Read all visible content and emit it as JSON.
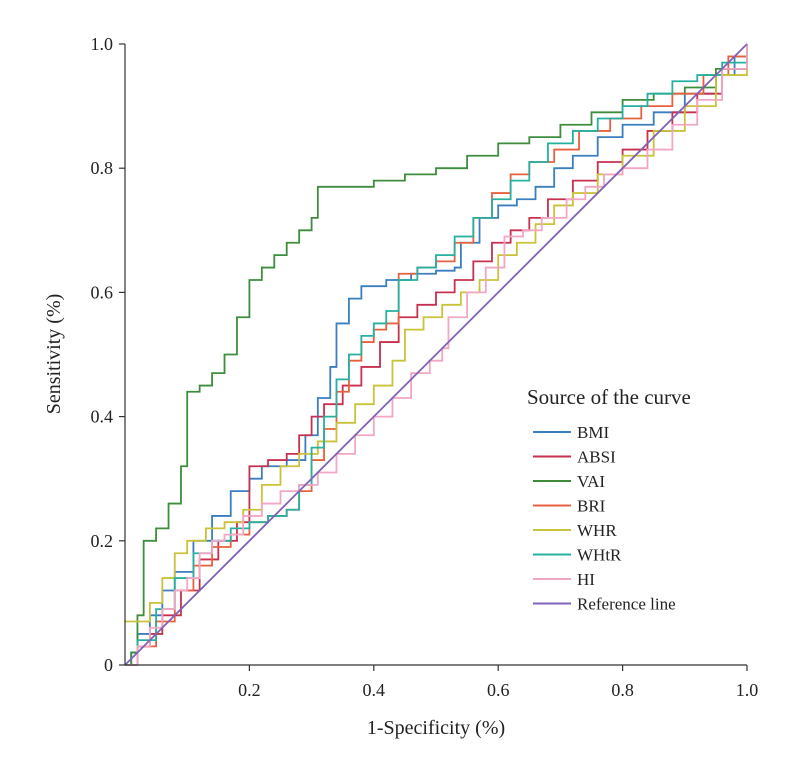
{
  "chart_data": {
    "type": "line",
    "title": "",
    "xlabel": "1-Specificity (%)",
    "ylabel": "Sensitivity (%)",
    "xlim": [
      0,
      1
    ],
    "ylim": [
      0,
      1
    ],
    "x_ticks": [
      0.2,
      0.4,
      0.6,
      0.8,
      1.0
    ],
    "x_tick_labels": [
      "0.2",
      "0.4",
      "0.6",
      "0.8",
      "1.0"
    ],
    "y_ticks": [
      0,
      0.2,
      0.4,
      0.6,
      0.8,
      1.0
    ],
    "y_tick_labels": [
      "0",
      "0.2",
      "0.4",
      "0.6",
      "0.8",
      "1.0"
    ],
    "grid": false,
    "legend": {
      "title": "Source of the curve",
      "placement": "center-right"
    },
    "series": [
      {
        "name": "BMI",
        "color": "#3a7ebf",
        "points": [
          [
            0,
            0
          ],
          [
            0.01,
            0.02
          ],
          [
            0.02,
            0.05
          ],
          [
            0.04,
            0.08
          ],
          [
            0.06,
            0.12
          ],
          [
            0.08,
            0.15
          ],
          [
            0.11,
            0.2
          ],
          [
            0.14,
            0.24
          ],
          [
            0.17,
            0.28
          ],
          [
            0.2,
            0.3
          ],
          [
            0.22,
            0.32
          ],
          [
            0.26,
            0.33
          ],
          [
            0.29,
            0.37
          ],
          [
            0.31,
            0.43
          ],
          [
            0.33,
            0.48
          ],
          [
            0.34,
            0.55
          ],
          [
            0.36,
            0.59
          ],
          [
            0.38,
            0.61
          ],
          [
            0.42,
            0.62
          ],
          [
            0.46,
            0.63
          ],
          [
            0.5,
            0.635
          ],
          [
            0.53,
            0.64
          ],
          [
            0.54,
            0.68
          ],
          [
            0.57,
            0.72
          ],
          [
            0.6,
            0.74
          ],
          [
            0.63,
            0.75
          ],
          [
            0.66,
            0.77
          ],
          [
            0.69,
            0.8
          ],
          [
            0.72,
            0.82
          ],
          [
            0.76,
            0.85
          ],
          [
            0.8,
            0.87
          ],
          [
            0.85,
            0.89
          ],
          [
            0.9,
            0.92
          ],
          [
            0.95,
            0.95
          ],
          [
            0.98,
            0.98
          ],
          [
            1,
            1
          ]
        ]
      },
      {
        "name": "ABSI",
        "color": "#c7304f",
        "points": [
          [
            0,
            0
          ],
          [
            0.02,
            0.03
          ],
          [
            0.04,
            0.05
          ],
          [
            0.06,
            0.08
          ],
          [
            0.09,
            0.12
          ],
          [
            0.12,
            0.17
          ],
          [
            0.15,
            0.2
          ],
          [
            0.18,
            0.23
          ],
          [
            0.2,
            0.32
          ],
          [
            0.23,
            0.33
          ],
          [
            0.26,
            0.34
          ],
          [
            0.28,
            0.37
          ],
          [
            0.3,
            0.4
          ],
          [
            0.32,
            0.42
          ],
          [
            0.35,
            0.45
          ],
          [
            0.38,
            0.48
          ],
          [
            0.41,
            0.52
          ],
          [
            0.44,
            0.56
          ],
          [
            0.47,
            0.58
          ],
          [
            0.5,
            0.6
          ],
          [
            0.53,
            0.62
          ],
          [
            0.56,
            0.65
          ],
          [
            0.59,
            0.68
          ],
          [
            0.62,
            0.7
          ],
          [
            0.65,
            0.72
          ],
          [
            0.68,
            0.75
          ],
          [
            0.72,
            0.78
          ],
          [
            0.76,
            0.81
          ],
          [
            0.8,
            0.83
          ],
          [
            0.84,
            0.86
          ],
          [
            0.88,
            0.89
          ],
          [
            0.92,
            0.92
          ],
          [
            0.96,
            0.96
          ],
          [
            1,
            1
          ]
        ]
      },
      {
        "name": "VAI",
        "color": "#3d8d3d",
        "points": [
          [
            0,
            0
          ],
          [
            0.01,
            0.02
          ],
          [
            0.02,
            0.08
          ],
          [
            0.03,
            0.2
          ],
          [
            0.05,
            0.22
          ],
          [
            0.07,
            0.26
          ],
          [
            0.09,
            0.32
          ],
          [
            0.1,
            0.44
          ],
          [
            0.12,
            0.45
          ],
          [
            0.14,
            0.47
          ],
          [
            0.16,
            0.5
          ],
          [
            0.18,
            0.56
          ],
          [
            0.2,
            0.62
          ],
          [
            0.22,
            0.64
          ],
          [
            0.24,
            0.66
          ],
          [
            0.26,
            0.68
          ],
          [
            0.28,
            0.7
          ],
          [
            0.3,
            0.72
          ],
          [
            0.31,
            0.77
          ],
          [
            0.35,
            0.77
          ],
          [
            0.4,
            0.78
          ],
          [
            0.45,
            0.79
          ],
          [
            0.5,
            0.8
          ],
          [
            0.55,
            0.82
          ],
          [
            0.6,
            0.84
          ],
          [
            0.65,
            0.85
          ],
          [
            0.7,
            0.87
          ],
          [
            0.75,
            0.89
          ],
          [
            0.8,
            0.91
          ],
          [
            0.85,
            0.92
          ],
          [
            0.9,
            0.93
          ],
          [
            0.95,
            0.96
          ],
          [
            1,
            1
          ]
        ]
      },
      {
        "name": "BRI",
        "color": "#e8613f",
        "points": [
          [
            0,
            0
          ],
          [
            0.02,
            0.03
          ],
          [
            0.05,
            0.07
          ],
          [
            0.08,
            0.12
          ],
          [
            0.11,
            0.16
          ],
          [
            0.14,
            0.19
          ],
          [
            0.17,
            0.21
          ],
          [
            0.2,
            0.23
          ],
          [
            0.23,
            0.24
          ],
          [
            0.26,
            0.25
          ],
          [
            0.28,
            0.28
          ],
          [
            0.3,
            0.33
          ],
          [
            0.32,
            0.38
          ],
          [
            0.34,
            0.44
          ],
          [
            0.36,
            0.49
          ],
          [
            0.38,
            0.52
          ],
          [
            0.4,
            0.54
          ],
          [
            0.42,
            0.55
          ],
          [
            0.44,
            0.63
          ],
          [
            0.47,
            0.64
          ],
          [
            0.5,
            0.65
          ],
          [
            0.53,
            0.68
          ],
          [
            0.56,
            0.72
          ],
          [
            0.59,
            0.76
          ],
          [
            0.62,
            0.79
          ],
          [
            0.65,
            0.81
          ],
          [
            0.69,
            0.83
          ],
          [
            0.73,
            0.86
          ],
          [
            0.78,
            0.88
          ],
          [
            0.83,
            0.9
          ],
          [
            0.88,
            0.92
          ],
          [
            0.93,
            0.95
          ],
          [
            0.97,
            0.98
          ],
          [
            1,
            1
          ]
        ]
      },
      {
        "name": "WHR",
        "color": "#c9c23a",
        "points": [
          [
            0,
            0.07
          ],
          [
            0.02,
            0.07
          ],
          [
            0.04,
            0.1
          ],
          [
            0.06,
            0.14
          ],
          [
            0.08,
            0.18
          ],
          [
            0.1,
            0.2
          ],
          [
            0.13,
            0.22
          ],
          [
            0.16,
            0.23
          ],
          [
            0.19,
            0.25
          ],
          [
            0.22,
            0.29
          ],
          [
            0.25,
            0.32
          ],
          [
            0.28,
            0.34
          ],
          [
            0.31,
            0.36
          ],
          [
            0.34,
            0.39
          ],
          [
            0.37,
            0.42
          ],
          [
            0.4,
            0.45
          ],
          [
            0.43,
            0.49
          ],
          [
            0.45,
            0.54
          ],
          [
            0.48,
            0.56
          ],
          [
            0.51,
            0.58
          ],
          [
            0.54,
            0.6
          ],
          [
            0.57,
            0.62
          ],
          [
            0.6,
            0.66
          ],
          [
            0.63,
            0.68
          ],
          [
            0.66,
            0.71
          ],
          [
            0.69,
            0.74
          ],
          [
            0.72,
            0.76
          ],
          [
            0.76,
            0.79
          ],
          [
            0.8,
            0.82
          ],
          [
            0.85,
            0.86
          ],
          [
            0.9,
            0.9
          ],
          [
            0.95,
            0.95
          ],
          [
            1,
            1
          ]
        ]
      },
      {
        "name": "WHtR",
        "color": "#27b0a0",
        "points": [
          [
            0,
            0
          ],
          [
            0.02,
            0.04
          ],
          [
            0.05,
            0.09
          ],
          [
            0.08,
            0.14
          ],
          [
            0.11,
            0.18
          ],
          [
            0.14,
            0.2
          ],
          [
            0.17,
            0.22
          ],
          [
            0.2,
            0.23
          ],
          [
            0.23,
            0.24
          ],
          [
            0.26,
            0.25
          ],
          [
            0.28,
            0.29
          ],
          [
            0.3,
            0.35
          ],
          [
            0.32,
            0.4
          ],
          [
            0.34,
            0.46
          ],
          [
            0.36,
            0.5
          ],
          [
            0.38,
            0.53
          ],
          [
            0.4,
            0.55
          ],
          [
            0.42,
            0.57
          ],
          [
            0.44,
            0.62
          ],
          [
            0.47,
            0.64
          ],
          [
            0.5,
            0.66
          ],
          [
            0.53,
            0.69
          ],
          [
            0.56,
            0.72
          ],
          [
            0.59,
            0.75
          ],
          [
            0.62,
            0.78
          ],
          [
            0.65,
            0.81
          ],
          [
            0.68,
            0.84
          ],
          [
            0.72,
            0.86
          ],
          [
            0.76,
            0.88
          ],
          [
            0.8,
            0.9
          ],
          [
            0.84,
            0.92
          ],
          [
            0.88,
            0.94
          ],
          [
            0.92,
            0.95
          ],
          [
            0.96,
            0.97
          ],
          [
            1,
            1
          ]
        ]
      },
      {
        "name": "HI",
        "color": "#f2a6c6",
        "points": [
          [
            0,
            0
          ],
          [
            0.02,
            0.03
          ],
          [
            0.04,
            0.06
          ],
          [
            0.06,
            0.09
          ],
          [
            0.08,
            0.12
          ],
          [
            0.1,
            0.14
          ],
          [
            0.12,
            0.18
          ],
          [
            0.14,
            0.2
          ],
          [
            0.16,
            0.21
          ],
          [
            0.19,
            0.24
          ],
          [
            0.22,
            0.26
          ],
          [
            0.25,
            0.28
          ],
          [
            0.28,
            0.29
          ],
          [
            0.31,
            0.31
          ],
          [
            0.34,
            0.34
          ],
          [
            0.37,
            0.37
          ],
          [
            0.4,
            0.4
          ],
          [
            0.43,
            0.43
          ],
          [
            0.46,
            0.47
          ],
          [
            0.49,
            0.49
          ],
          [
            0.51,
            0.51
          ],
          [
            0.52,
            0.56
          ],
          [
            0.55,
            0.6
          ],
          [
            0.58,
            0.64
          ],
          [
            0.61,
            0.69
          ],
          [
            0.64,
            0.7
          ],
          [
            0.67,
            0.72
          ],
          [
            0.71,
            0.75
          ],
          [
            0.74,
            0.77
          ],
          [
            0.77,
            0.79
          ],
          [
            0.8,
            0.8
          ],
          [
            0.84,
            0.83
          ],
          [
            0.88,
            0.87
          ],
          [
            0.92,
            0.91
          ],
          [
            0.96,
            0.96
          ],
          [
            1,
            1
          ]
        ]
      },
      {
        "name": "Reference line",
        "color": "#8062b8",
        "points": [
          [
            0,
            0
          ],
          [
            1,
            1
          ]
        ]
      }
    ]
  }
}
